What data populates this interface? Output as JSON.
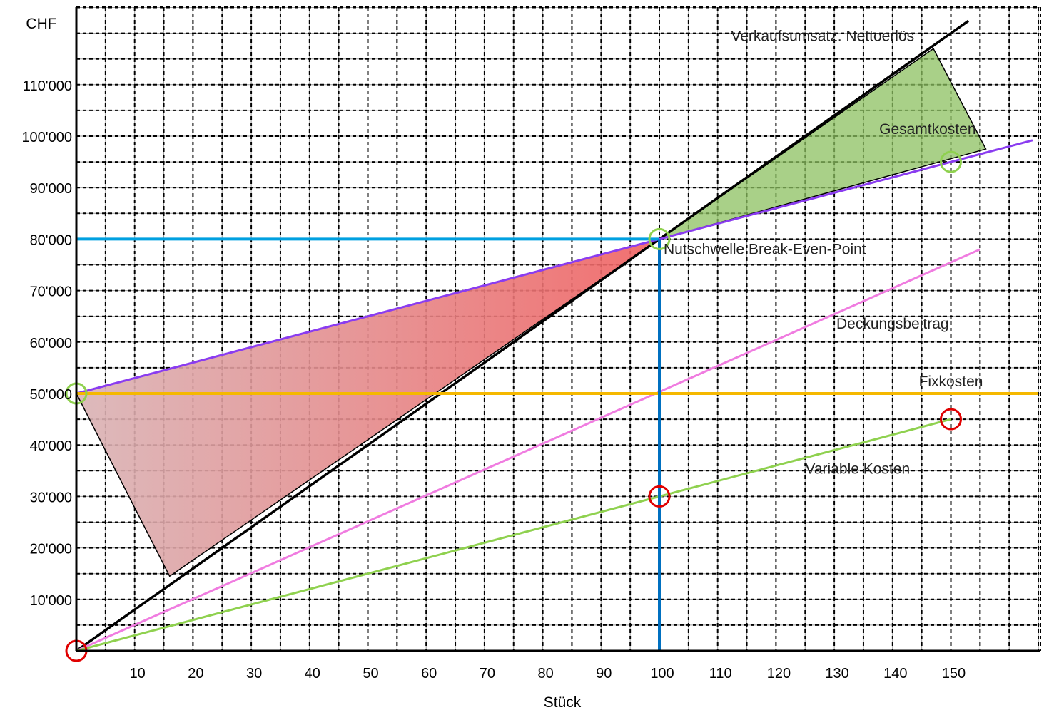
{
  "chart_data": {
    "type": "line",
    "title": "",
    "xlabel": "Stück",
    "ylabel": "CHF",
    "xlim": [
      0,
      165
    ],
    "ylim": [
      0,
      125000
    ],
    "grid": true,
    "x_tick_labels": [
      "10",
      "20",
      "30",
      "40",
      "50",
      "60",
      "70",
      "80",
      "90",
      "100",
      "110",
      "120",
      "130",
      "140",
      "150"
    ],
    "y_tick_labels": [
      "10'000",
      "20'000",
      "30'000",
      "40'000",
      "50'000",
      "60'000",
      "70'000",
      "80'000",
      "90'000",
      "100'000",
      "110'000"
    ],
    "series": [
      {
        "name": "Verkaufsumsatz. Nettoerlös",
        "color": "#000000",
        "x": [
          0,
          153
        ],
        "y": [
          0,
          122400
        ]
      },
      {
        "name": "Gesamtkosten",
        "color": "#8a3cf0",
        "x": [
          0,
          164
        ],
        "y": [
          50000,
          99200
        ]
      },
      {
        "name": "Deckungsbeitrag",
        "color": "#f07ce0",
        "x": [
          0,
          155
        ],
        "y": [
          0,
          78000
        ]
      },
      {
        "name": "Fixkosten",
        "color": "#f5b800",
        "x": [
          0,
          165
        ],
        "y": [
          50000,
          50000
        ]
      },
      {
        "name": "Variable Kosten",
        "color": "#8fd14f",
        "x": [
          0,
          150
        ],
        "y": [
          0,
          45000
        ]
      }
    ],
    "annotations": [
      {
        "text": "Nutschwelle Break-Even-Point",
        "x": 100,
        "y": 80000
      }
    ],
    "highlight_lines": [
      {
        "color": "#00a0e0",
        "orientation": "horizontal",
        "y": 80000,
        "x_from": 0,
        "x_to": 100
      },
      {
        "color": "#0070c0",
        "orientation": "vertical",
        "x": 100,
        "y_from": 0,
        "y_to": 80000
      }
    ],
    "regions": [
      {
        "meaning": "loss",
        "color": "#e05555",
        "x": [
          0,
          100,
          16
        ],
        "y": [
          50000,
          80000,
          14500
        ]
      },
      {
        "meaning": "profit",
        "color": "#8cc060",
        "x": [
          100,
          147,
          156
        ],
        "y": [
          80000,
          117000,
          97500
        ]
      }
    ],
    "markers": [
      {
        "color": "#e00000",
        "x": 0,
        "y": 0
      },
      {
        "color": "#e00000",
        "x": 100,
        "y": 30000
      },
      {
        "color": "#e00000",
        "x": 150,
        "y": 45000
      },
      {
        "color": "#8fd14f",
        "x": 0,
        "y": 50000
      },
      {
        "color": "#8fd14f",
        "x": 100,
        "y": 80000
      },
      {
        "color": "#8fd14f",
        "x": 150,
        "y": 95000
      }
    ]
  }
}
